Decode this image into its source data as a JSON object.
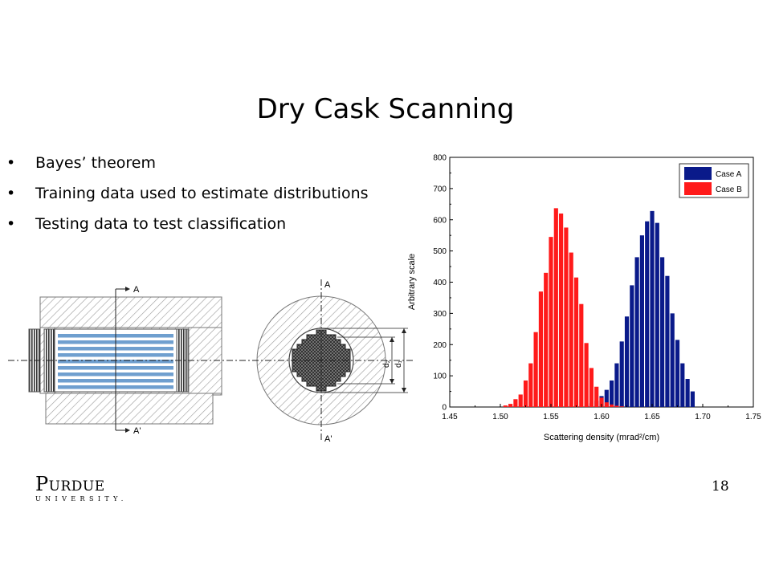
{
  "slide": {
    "title": "Dry Cask Scanning",
    "bullets": [
      "Bayes’ theorem",
      "Training data used to estimate distributions",
      "Testing data to test classification"
    ],
    "bullet_symbol": "•",
    "page_number": "18",
    "logo": {
      "word": "Purdue",
      "sub": "UNIVERSITY."
    }
  },
  "diagram": {
    "labels": {
      "section_top_left": "A",
      "section_bottom_left": "A'",
      "section_top_right": "A",
      "section_bottom_right": "A'",
      "d1": "d₁",
      "d2": "d₂"
    },
    "colors": {
      "fuel_rod": "#6f9fcf",
      "hatch": "#999999"
    }
  },
  "chart_data": {
    "type": "bar",
    "xlabel": "Scattering density (mrad²/cm)",
    "ylabel": "Arbitrary scale",
    "xlim": [
      1.45,
      1.75
    ],
    "ylim": [
      0,
      800
    ],
    "xticks": [
      1.45,
      1.5,
      1.55,
      1.6,
      1.65,
      1.7,
      1.75
    ],
    "xtick_labels": [
      "1.45",
      "1.50",
      "1.55",
      "1.60",
      "1.65",
      "1.70",
      "1.75"
    ],
    "yticks": [
      0,
      100,
      200,
      300,
      400,
      500,
      600,
      700,
      800
    ],
    "bin_width": 0.005,
    "legend_position": "top-right",
    "grid": false,
    "series": [
      {
        "name": "Case A",
        "color": "#0a1a8a",
        "bin_centers": [
          1.585,
          1.59,
          1.595,
          1.6,
          1.605,
          1.61,
          1.615,
          1.62,
          1.625,
          1.63,
          1.635,
          1.64,
          1.645,
          1.65,
          1.655,
          1.66,
          1.665,
          1.67,
          1.675,
          1.68,
          1.685,
          1.69
        ],
        "values": [
          5,
          12,
          20,
          35,
          55,
          85,
          140,
          210,
          290,
          390,
          480,
          550,
          595,
          628,
          590,
          480,
          420,
          300,
          215,
          140,
          90,
          50
        ]
      },
      {
        "name": "Case B",
        "color": "#ff1a1a",
        "bin_centers": [
          1.505,
          1.51,
          1.515,
          1.52,
          1.525,
          1.53,
          1.535,
          1.54,
          1.545,
          1.55,
          1.555,
          1.56,
          1.565,
          1.57,
          1.575,
          1.58,
          1.585,
          1.59,
          1.595,
          1.6,
          1.605,
          1.61,
          1.615,
          1.62
        ],
        "values": [
          5,
          10,
          25,
          40,
          85,
          140,
          240,
          370,
          430,
          545,
          637,
          620,
          575,
          495,
          415,
          330,
          205,
          125,
          65,
          30,
          15,
          8,
          4,
          2
        ]
      }
    ]
  }
}
